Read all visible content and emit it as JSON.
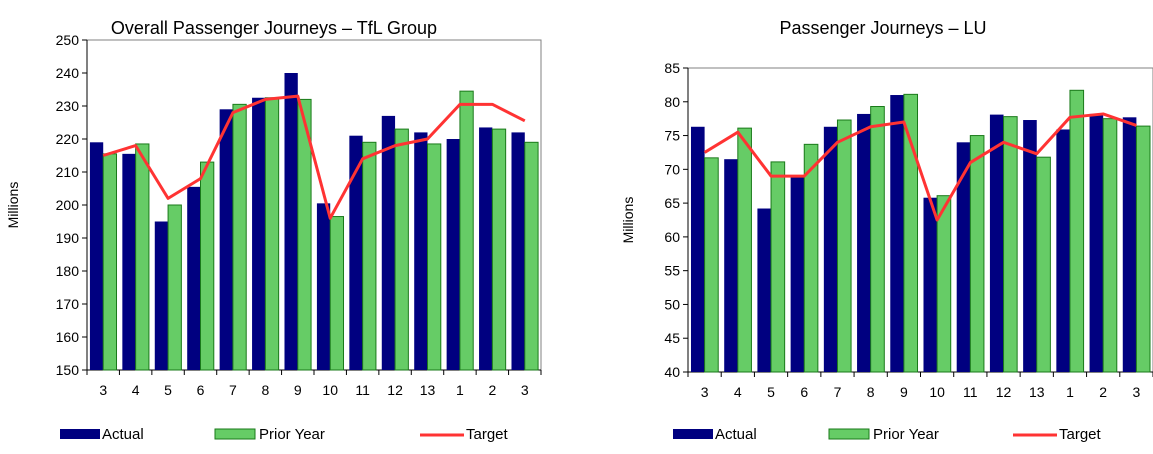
{
  "colors": {
    "actual": "#000080",
    "prior_year": "#66cc66",
    "prior_year_stroke": "#1a7a1a",
    "target": "#ff3333",
    "axis": "#000000"
  },
  "chart_data": [
    {
      "type": "bar",
      "title": "Overall Passenger Journeys – TfL Group",
      "ylabel": "Millions",
      "xlabel": "",
      "ylim": [
        150,
        250
      ],
      "yticks": [
        150,
        160,
        170,
        180,
        190,
        200,
        210,
        220,
        230,
        240,
        250
      ],
      "grid": false,
      "legend_position": "bottom",
      "categories": [
        "3",
        "4",
        "5",
        "6",
        "7",
        "8",
        "9",
        "10",
        "11",
        "12",
        "13",
        "1",
        "2",
        "3"
      ],
      "series": [
        {
          "name": "Actual",
          "kind": "bar",
          "values": [
            219,
            215.5,
            195,
            205.5,
            229,
            232.5,
            240,
            200.5,
            221,
            227,
            222,
            220,
            223.5,
            222
          ]
        },
        {
          "name": "Prior Year",
          "kind": "bar",
          "values": [
            215.5,
            218.5,
            200,
            213,
            230.5,
            232.5,
            232,
            196.5,
            219,
            223,
            218.5,
            234.5,
            223,
            219
          ]
        },
        {
          "name": "Target",
          "kind": "line",
          "values": [
            215,
            218,
            202,
            208,
            228,
            232,
            233,
            196,
            214,
            218,
            220,
            230.5,
            230.5,
            225.5
          ]
        }
      ]
    },
    {
      "type": "bar",
      "title": "Passenger Journeys – LU",
      "ylabel": "Millions",
      "xlabel": "",
      "ylim": [
        40,
        85
      ],
      "yticks": [
        40,
        45,
        50,
        55,
        60,
        65,
        70,
        75,
        80,
        85
      ],
      "grid": false,
      "legend_position": "bottom",
      "categories": [
        "3",
        "4",
        "5",
        "6",
        "7",
        "8",
        "9",
        "10",
        "11",
        "12",
        "13",
        "1",
        "2",
        "3"
      ],
      "series": [
        {
          "name": "Actual",
          "kind": "bar",
          "values": [
            76.3,
            71.5,
            64.2,
            68.8,
            76.3,
            78.2,
            81,
            65.8,
            74,
            78.1,
            77.3,
            75.9,
            78.2,
            77.7
          ]
        },
        {
          "name": "Prior Year",
          "kind": "bar",
          "values": [
            71.7,
            76.1,
            71.1,
            73.7,
            77.3,
            79.3,
            81.1,
            66.1,
            75,
            77.8,
            71.8,
            81.7,
            77.5,
            76.4
          ]
        },
        {
          "name": "Target",
          "kind": "line",
          "values": [
            72.5,
            75.5,
            69,
            69,
            74,
            76.3,
            77,
            62.5,
            71,
            74,
            72.3,
            77.7,
            78.2,
            76.5
          ]
        }
      ]
    }
  ]
}
